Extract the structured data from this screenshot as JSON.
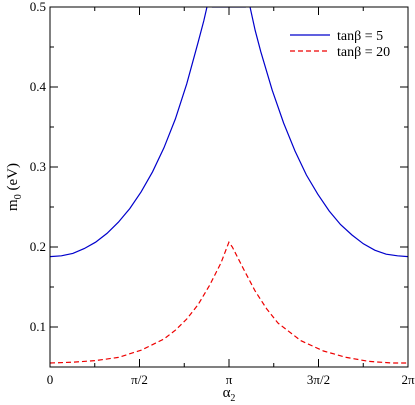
{
  "chart_data": {
    "type": "line",
    "xlabel": "α",
    "xlabel_sub": "2",
    "ylabel": "m",
    "ylabel_sub": "0",
    "ylabel_unit": " (eV)",
    "xlim": [
      0,
      6.2832
    ],
    "ylim": [
      0.05,
      0.5
    ],
    "x_ticks": [
      {
        "value": 0,
        "label": "0"
      },
      {
        "value": 1.5708,
        "label": "π/2"
      },
      {
        "value": 3.1416,
        "label": "π"
      },
      {
        "value": 4.7124,
        "label": "3π/2"
      },
      {
        "value": 6.2832,
        "label": "2π"
      }
    ],
    "y_ticks": [
      {
        "value": 0.1,
        "label": "0.1"
      },
      {
        "value": 0.2,
        "label": "0.2"
      },
      {
        "value": 0.3,
        "label": "0.3"
      },
      {
        "value": 0.4,
        "label": "0.4"
      },
      {
        "value": 0.5,
        "label": "0.5"
      }
    ],
    "grid": false,
    "legend_position": "top-right",
    "series": [
      {
        "name": "tanβ = 5",
        "color": "#0000cc",
        "style": "solid",
        "x": [
          0,
          0.2,
          0.4,
          0.6,
          0.8,
          1.0,
          1.2,
          1.4,
          1.6,
          1.8,
          2.0,
          2.2,
          2.4,
          2.6,
          2.7,
          2.8,
          2.85,
          3.43,
          3.48,
          3.6,
          3.7,
          3.9,
          4.1,
          4.3,
          4.5,
          4.7,
          4.9,
          5.1,
          5.3,
          5.5,
          5.7,
          5.9,
          6.1,
          6.2832
        ],
        "y": [
          0.188,
          0.189,
          0.192,
          0.198,
          0.206,
          0.217,
          0.231,
          0.248,
          0.269,
          0.294,
          0.324,
          0.36,
          0.404,
          0.456,
          0.483,
          0.514,
          0.5,
          0.5,
          0.51,
          0.471,
          0.444,
          0.396,
          0.355,
          0.32,
          0.29,
          0.266,
          0.245,
          0.228,
          0.215,
          0.204,
          0.196,
          0.191,
          0.189,
          0.188
        ]
      },
      {
        "name": "tanβ = 20",
        "color": "#ee0000",
        "style": "dashed",
        "x": [
          0,
          0.4,
          0.8,
          1.2,
          1.6,
          2.0,
          2.2,
          2.4,
          2.6,
          2.8,
          3.0,
          3.14,
          3.2,
          3.4,
          3.6,
          3.8,
          4.0,
          4.4,
          4.8,
          5.2,
          5.6,
          6.0,
          6.2832
        ],
        "y": [
          0.055,
          0.056,
          0.058,
          0.062,
          0.071,
          0.085,
          0.096,
          0.11,
          0.128,
          0.152,
          0.18,
          0.206,
          0.2,
          0.172,
          0.145,
          0.123,
          0.105,
          0.083,
          0.07,
          0.062,
          0.057,
          0.055,
          0.055
        ]
      }
    ]
  }
}
